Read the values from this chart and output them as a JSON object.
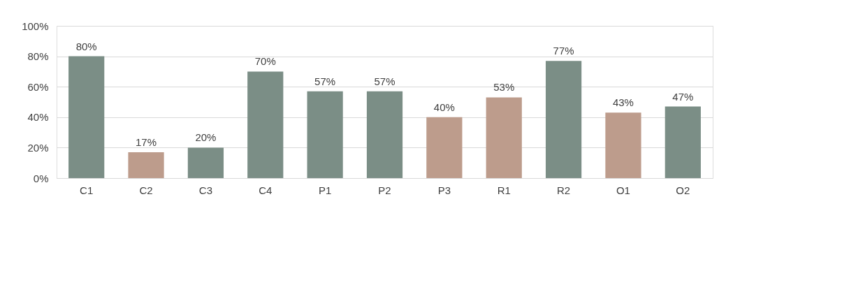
{
  "chart_data": {
    "type": "bar",
    "categories": [
      "C1",
      "C2",
      "C3",
      "C4",
      "P1",
      "P2",
      "P3",
      "R1",
      "R2",
      "O1",
      "O2"
    ],
    "values": [
      80,
      17,
      20,
      70,
      57,
      57,
      40,
      53,
      77,
      43,
      47
    ],
    "colors": [
      "#7b8e86",
      "#bd9c8c",
      "#7b8e86",
      "#7b8e86",
      "#7b8e86",
      "#7b8e86",
      "#bd9c8c",
      "#bd9c8c",
      "#7b8e86",
      "#bd9c8c",
      "#7b8e86"
    ],
    "value_labels": [
      "80%",
      "17%",
      "20%",
      "70%",
      "57%",
      "57%",
      "40%",
      "53%",
      "77%",
      "43%",
      "47%"
    ],
    "ylim": [
      0,
      100
    ],
    "yticks": [
      {
        "value": 0,
        "label": "0%"
      },
      {
        "value": 20,
        "label": "20%"
      },
      {
        "value": 40,
        "label": "40%"
      },
      {
        "value": 60,
        "label": "60%"
      },
      {
        "value": 80,
        "label": "80%"
      },
      {
        "value": 100,
        "label": "100%"
      }
    ],
    "grid": "y"
  }
}
